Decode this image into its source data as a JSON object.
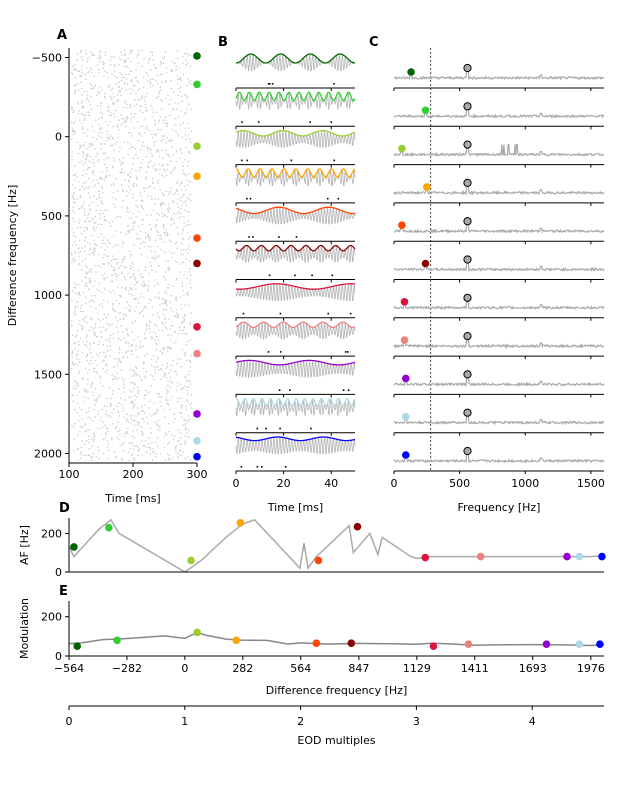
{
  "colors": [
    "#006400",
    "#32cd32",
    "#9acd32",
    "#ffa500",
    "#ff4500",
    "#8b0000",
    "#dc143c",
    "#f08080",
    "#9400d3",
    "#add8e6",
    "#0000ff"
  ],
  "panel_labels": {
    "a": "A",
    "b": "B",
    "c": "C",
    "d": "D",
    "e": "E"
  },
  "chart_data": [
    {
      "id": "A",
      "type": "scatter",
      "xlabel": "Time [ms]",
      "ylabel": "Difference frequency [Hz]",
      "xlim": [
        100,
        300
      ],
      "ylim": [
        2060,
        -560
      ],
      "xticks": [
        100,
        200,
        300
      ],
      "yticks": [
        -500,
        0,
        500,
        1000,
        1500,
        2000
      ],
      "markers_y": [
        -510,
        -330,
        60,
        250,
        640,
        800,
        1200,
        1370,
        1750,
        1920,
        2020
      ],
      "description_series": "spike raster"
    },
    {
      "id": "B",
      "type": "line",
      "xlabel": "Time [ms]",
      "xlim": [
        0,
        50
      ],
      "xticks": [
        0,
        20,
        40
      ],
      "rows": 11
    },
    {
      "id": "C",
      "type": "line",
      "xlabel": "Frequency [Hz]",
      "xlim": [
        0,
        1600
      ],
      "xticks": [
        0,
        500,
        1000,
        1500
      ],
      "vline_x": 280,
      "eod_peak_x": 560,
      "colored_peak_x": [
        130,
        240,
        60,
        250,
        60,
        240,
        80,
        80,
        90,
        90,
        90
      ],
      "rows": 11
    },
    {
      "id": "D",
      "type": "line",
      "ylabel": "AF [Hz]",
      "ylim": [
        0,
        280
      ],
      "yticks": [
        0,
        200
      ],
      "x": [
        -564,
        -540,
        -420,
        -360,
        -320,
        0,
        80,
        200,
        282,
        340,
        560,
        580,
        600,
        640,
        760,
        800,
        820,
        900,
        940,
        960,
        1100,
        1130,
        1200,
        1411,
        1693,
        1976,
        2040
      ],
      "y": [
        130,
        80,
        220,
        270,
        200,
        0,
        60,
        180,
        250,
        270,
        20,
        150,
        20,
        80,
        200,
        240,
        100,
        200,
        90,
        180,
        80,
        70,
        80,
        80,
        80,
        80,
        85
      ],
      "points": [
        {
          "x": -540,
          "y": 130
        },
        {
          "x": -370,
          "y": 230
        },
        {
          "x": 30,
          "y": 60
        },
        {
          "x": 270,
          "y": 255
        },
        {
          "x": 650,
          "y": 60
        },
        {
          "x": 840,
          "y": 235
        },
        {
          "x": 1170,
          "y": 75
        },
        {
          "x": 1440,
          "y": 80
        },
        {
          "x": 1860,
          "y": 80
        },
        {
          "x": 1920,
          "y": 80
        },
        {
          "x": 2030,
          "y": 80
        }
      ]
    },
    {
      "id": "E",
      "type": "line",
      "xlabel": "Difference frequency [Hz]",
      "ylabel": "Modulation",
      "xlim": [
        -564,
        2040
      ],
      "ylim": [
        0,
        280
      ],
      "yticks": [
        0,
        200
      ],
      "xticks": [
        -564,
        -282,
        0,
        282,
        564,
        847,
        1129,
        1411,
        1693,
        1976
      ],
      "x": [
        -564,
        -500,
        -400,
        -300,
        -200,
        -100,
        0,
        60,
        100,
        200,
        282,
        400,
        500,
        564,
        700,
        847,
        1000,
        1129,
        1200,
        1300,
        1411,
        1500,
        1693,
        1850,
        1976,
        2040
      ],
      "y": [
        60,
        70,
        80,
        85,
        95,
        105,
        90,
        120,
        110,
        90,
        80,
        75,
        65,
        70,
        65,
        60,
        60,
        55,
        60,
        60,
        60,
        55,
        60,
        55,
        55,
        60
      ],
      "points": [
        {
          "x": -524,
          "y": 50
        },
        {
          "x": -330,
          "y": 80
        },
        {
          "x": 60,
          "y": 120
        },
        {
          "x": 250,
          "y": 80
        },
        {
          "x": 640,
          "y": 65
        },
        {
          "x": 810,
          "y": 65
        },
        {
          "x": 1210,
          "y": 50
        },
        {
          "x": 1380,
          "y": 60
        },
        {
          "x": 1760,
          "y": 60
        },
        {
          "x": 1920,
          "y": 60
        },
        {
          "x": 2020,
          "y": 60
        }
      ]
    },
    {
      "id": "E2",
      "type": "line",
      "xlabel": "EOD multiples",
      "xlim": [
        0,
        4.62
      ],
      "xticks": [
        0,
        1,
        2,
        3,
        4
      ]
    }
  ]
}
